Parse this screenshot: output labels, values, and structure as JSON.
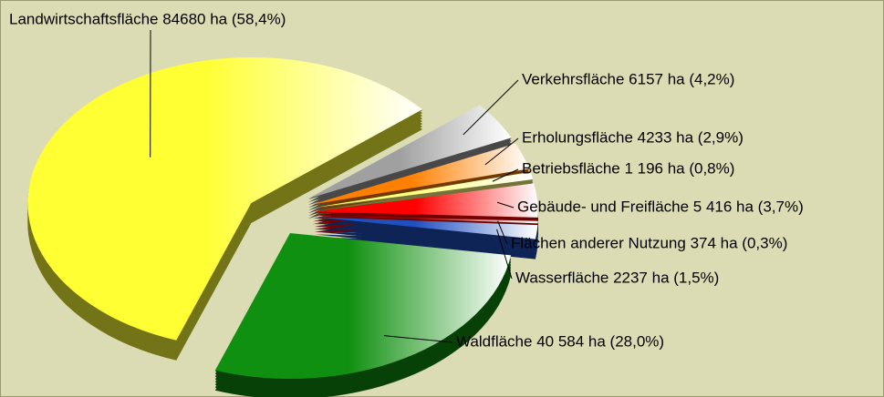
{
  "chart_data": {
    "type": "pie",
    "categories": [
      "Landwirtschaftsfläche",
      "Verkehrsfläche",
      "Erholungsfläche",
      "Betriebsfläche",
      "Gebäude- und Freifläche",
      "Flächen anderer Nutzung",
      "Wasserfläche",
      "Waldfläche"
    ],
    "values": [
      84680,
      6157,
      4233,
      1196,
      5416,
      374,
      2237,
      40584
    ],
    "value_labels": [
      "Landwirtschaftsfläche 84680 ha (58,4%)",
      "Verkehrsfläche 6157 ha (4,2%)",
      "Erholungsfläche 4233 ha (2,9%)",
      "Betriebsfläche 1 196 ha (0,8%)",
      "Gebäude- und Freifläche 5 416 ha (3,7%)",
      "Flächen anderer Nutzung 374 ha (0,3%)",
      "Wasserfläche 2237 ha (1,5%)",
      "Waldfläche 40 584 ha (28,0%)"
    ],
    "colors": [
      "#ffff33",
      "#a0a0a0",
      "#ff8000",
      "#ffff80",
      "#ff0000",
      "#c00000",
      "#2050c0",
      "#109010"
    ]
  }
}
